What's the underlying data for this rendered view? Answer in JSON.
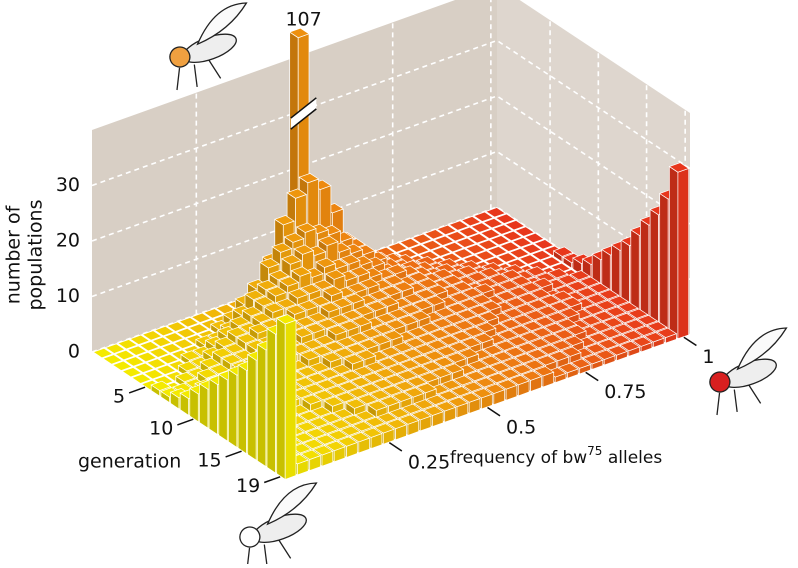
{
  "chart_data": {
    "type": "bar3d",
    "z_label": [
      "number of",
      "populations"
    ],
    "y_label": "generation",
    "x_label": "frequency of bw",
    "x_label_sup": "75",
    "x_label_end": " alleles",
    "xlim": [
      0,
      1
    ],
    "xticks": [
      0.25,
      0.5,
      0.75,
      1
    ],
    "ylim": [
      0,
      19
    ],
    "yticks": [
      5,
      10,
      15,
      19
    ],
    "zlim": [
      0,
      40
    ],
    "zticks": [
      0,
      10,
      20,
      30
    ],
    "colors": [
      "#f4ea00",
      "#e8361c"
    ],
    "wall_color": "#d8cfc5",
    "grid": true,
    "values": [
      [
        0,
        0,
        0,
        0,
        0,
        0,
        0,
        0,
        0,
        0,
        0,
        0,
        0,
        0,
        0,
        0,
        107,
        0,
        0,
        0,
        0,
        0,
        0,
        0,
        0,
        0,
        0,
        0,
        0,
        0,
        0,
        0,
        0
      ],
      [
        0,
        0,
        0,
        0,
        0,
        0,
        0,
        0,
        0,
        0,
        0,
        1,
        3,
        8,
        14,
        18,
        20,
        18,
        13,
        7,
        4,
        1,
        0,
        0,
        0,
        0,
        0,
        0,
        0,
        0,
        0,
        0,
        0
      ],
      [
        0,
        0,
        0,
        0,
        0,
        0,
        0,
        0,
        1,
        2,
        4,
        6,
        9,
        11,
        12,
        13,
        12,
        11,
        9,
        7,
        4,
        3,
        2,
        1,
        0,
        0,
        0,
        0,
        0,
        0,
        0,
        0,
        0
      ],
      [
        0,
        0,
        0,
        0,
        0,
        0,
        1,
        1,
        2,
        4,
        6,
        7,
        8,
        10,
        11,
        10,
        11,
        9,
        8,
        7,
        5,
        3,
        2,
        1,
        1,
        0,
        0,
        0,
        0,
        0,
        0,
        0,
        0
      ],
      [
        0,
        0,
        0,
        0,
        1,
        1,
        2,
        3,
        4,
        5,
        6,
        7,
        8,
        9,
        8,
        9,
        8,
        8,
        7,
        6,
        4,
        3,
        3,
        2,
        1,
        1,
        0,
        0,
        0,
        0,
        0,
        0,
        0
      ],
      [
        0,
        0,
        0,
        1,
        1,
        2,
        3,
        4,
        4,
        5,
        6,
        6,
        7,
        7,
        7,
        8,
        7,
        7,
        6,
        5,
        5,
        4,
        3,
        2,
        2,
        1,
        1,
        0,
        0,
        0,
        0,
        0,
        0
      ],
      [
        1,
        0,
        1,
        1,
        2,
        3,
        3,
        4,
        5,
        5,
        5,
        6,
        6,
        6,
        7,
        6,
        6,
        6,
        5,
        5,
        4,
        4,
        3,
        3,
        2,
        2,
        1,
        1,
        0,
        0,
        0,
        0,
        0
      ],
      [
        1,
        1,
        1,
        2,
        2,
        3,
        3,
        4,
        4,
        5,
        5,
        5,
        5,
        6,
        6,
        6,
        5,
        5,
        5,
        5,
        4,
        4,
        3,
        3,
        2,
        2,
        2,
        1,
        1,
        0,
        0,
        0,
        1
      ],
      [
        2,
        1,
        2,
        2,
        2,
        3,
        3,
        4,
        4,
        4,
        5,
        5,
        5,
        5,
        5,
        5,
        5,
        5,
        4,
        4,
        4,
        4,
        3,
        3,
        2,
        2,
        2,
        2,
        1,
        1,
        0,
        0,
        1
      ],
      [
        3,
        2,
        2,
        2,
        3,
        3,
        3,
        3,
        4,
        4,
        4,
        4,
        5,
        5,
        5,
        4,
        4,
        4,
        4,
        4,
        4,
        3,
        3,
        3,
        3,
        2,
        2,
        2,
        1,
        1,
        1,
        0,
        2
      ],
      [
        5,
        2,
        2,
        3,
        3,
        3,
        3,
        3,
        3,
        4,
        4,
        4,
        4,
        4,
        4,
        4,
        4,
        4,
        4,
        3,
        3,
        3,
        3,
        3,
        2,
        2,
        2,
        2,
        2,
        1,
        1,
        1,
        3
      ],
      [
        7,
        3,
        3,
        3,
        3,
        3,
        3,
        3,
        3,
        3,
        4,
        4,
        4,
        4,
        4,
        4,
        3,
        3,
        3,
        3,
        3,
        3,
        3,
        3,
        2,
        2,
        2,
        2,
        1,
        1,
        1,
        1,
        5
      ],
      [
        9,
        3,
        3,
        3,
        3,
        3,
        3,
        3,
        3,
        3,
        3,
        4,
        4,
        3,
        3,
        3,
        3,
        3,
        3,
        3,
        3,
        3,
        3,
        2,
        2,
        2,
        2,
        2,
        2,
        1,
        1,
        1,
        7
      ],
      [
        11,
        3,
        3,
        3,
        3,
        3,
        3,
        3,
        3,
        3,
        3,
        3,
        3,
        3,
        3,
        3,
        3,
        3,
        3,
        3,
        3,
        3,
        2,
        2,
        2,
        2,
        2,
        2,
        2,
        1,
        1,
        1,
        9
      ],
      [
        13,
        3,
        3,
        3,
        2,
        2,
        3,
        3,
        3,
        3,
        3,
        3,
        3,
        3,
        3,
        3,
        3,
        3,
        3,
        3,
        3,
        2,
        2,
        2,
        2,
        2,
        2,
        2,
        1,
        1,
        1,
        1,
        11
      ],
      [
        15,
        3,
        2,
        2,
        2,
        2,
        2,
        3,
        3,
        3,
        3,
        3,
        3,
        3,
        3,
        3,
        3,
        3,
        3,
        2,
        2,
        2,
        2,
        2,
        2,
        2,
        2,
        1,
        1,
        1,
        1,
        1,
        14
      ],
      [
        18,
        2,
        2,
        2,
        2,
        2,
        2,
        2,
        3,
        3,
        3,
        3,
        3,
        3,
        3,
        3,
        3,
        2,
        2,
        2,
        2,
        2,
        2,
        2,
        2,
        2,
        2,
        1,
        1,
        1,
        1,
        1,
        17
      ],
      [
        21,
        2,
        2,
        2,
        2,
        2,
        2,
        2,
        2,
        3,
        3,
        3,
        3,
        3,
        2,
        2,
        2,
        2,
        2,
        2,
        2,
        2,
        2,
        2,
        2,
        2,
        1,
        1,
        1,
        1,
        1,
        1,
        20
      ],
      [
        25,
        2,
        2,
        2,
        2,
        2,
        2,
        2,
        2,
        2,
        2,
        2,
        2,
        2,
        2,
        2,
        2,
        2,
        2,
        2,
        2,
        2,
        2,
        2,
        2,
        1,
        1,
        1,
        1,
        1,
        1,
        1,
        24
      ],
      [
        28,
        2,
        2,
        2,
        2,
        2,
        2,
        2,
        2,
        2,
        2,
        2,
        2,
        2,
        2,
        2,
        2,
        2,
        2,
        2,
        2,
        2,
        1,
        1,
        1,
        1,
        1,
        1,
        1,
        1,
        1,
        1,
        30
      ]
    ]
  }
}
